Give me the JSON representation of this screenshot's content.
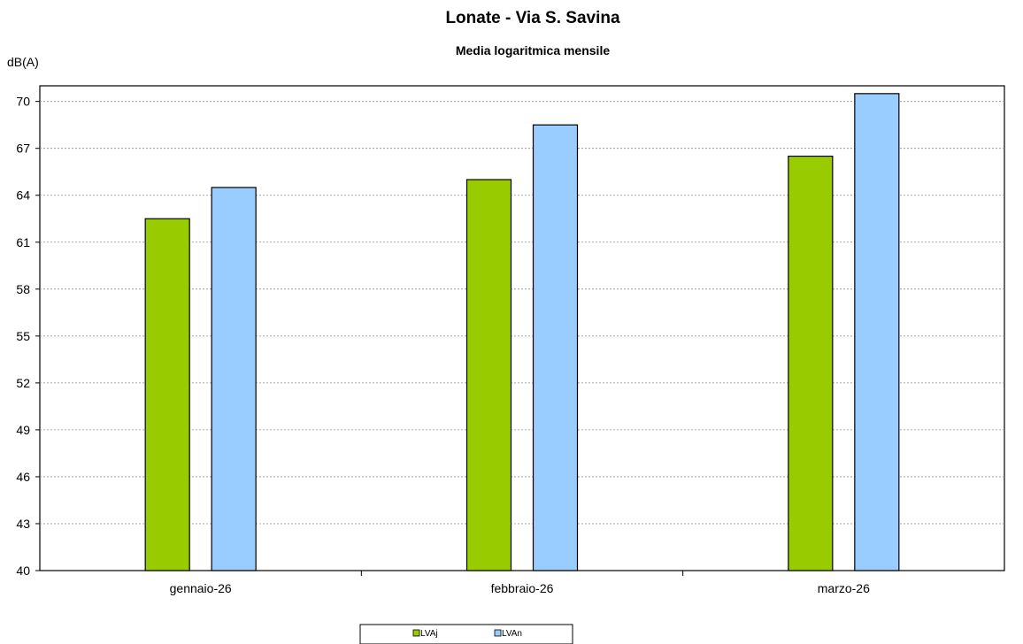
{
  "chart_data": {
    "type": "bar",
    "title": "Lonate - Via S. Savina",
    "subtitle": "Media logaritmica mensile",
    "ylabel": "dB(A)",
    "xlabel": "",
    "categories": [
      "gennaio-26",
      "febbraio-26",
      "marzo-26"
    ],
    "series": [
      {
        "name": "LVAj",
        "color": "#99cc00",
        "values": [
          62.5,
          65.0,
          66.5
        ]
      },
      {
        "name": "LVAn",
        "color": "#99ccff",
        "values": [
          64.5,
          68.5,
          70.5
        ]
      }
    ],
    "ylim": [
      40,
      71
    ],
    "yticks": [
      40,
      43,
      46,
      49,
      52,
      55,
      58,
      61,
      64,
      67,
      70
    ],
    "grid": true,
    "legend_position": "bottom"
  }
}
